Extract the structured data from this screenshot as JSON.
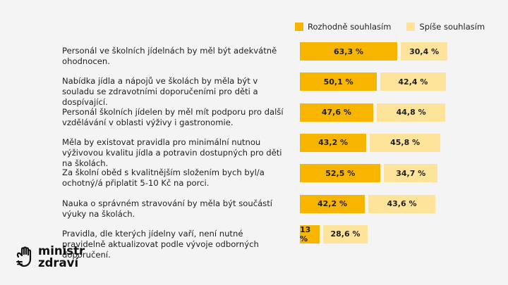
{
  "legend": {
    "series1": "Rozhodně souhlasím",
    "series2": "Spíše souhlasím"
  },
  "colors": {
    "series1": "#f7b500",
    "series2": "#fde49a",
    "background": "#f4f4f4"
  },
  "chart_data": {
    "type": "bar",
    "orientation": "horizontal",
    "stacked": true,
    "categories": [
      "Personál ve školních jídelnách by měl být adekvátně ohodnocen.",
      "Nabídka jídla a nápojů ve školách by měla být v souladu se zdravotními doporučeními pro děti a dospívající.",
      "Personál školních jídelen by měl mít podporu pro další vzdělávání v oblasti výživy i gastronomie.",
      "Měla by existovat pravidla pro minimální nutnou výživovou kvalitu jídla a potravin dostupných pro děti na školách.",
      "Za školní oběd s kvalitnějším složením bych byl/a ochotný/á připlatit 5-10 Kč na porci.",
      "Nauka o správném stravování by měla být součástí výuky na školách.",
      "Pravidla, dle kterých jídelny vaří, není nutné pravidelně aktualizovat podle vývoje odborných doporučení."
    ],
    "series": [
      {
        "name": "Rozhodně souhlasím",
        "values": [
          63.3,
          50.1,
          47.6,
          43.2,
          52.5,
          42.2,
          13
        ],
        "labels": [
          "63,3 %",
          "50,1 %",
          "47,6 %",
          "43,2 %",
          "52,5 %",
          "42,2 %",
          "13 %"
        ]
      },
      {
        "name": "Spíše souhlasím",
        "values": [
          30.4,
          42.4,
          44.8,
          45.8,
          34.7,
          43.6,
          28.6
        ],
        "labels": [
          "30,4 %",
          "42,4 %",
          "44,8 %",
          "45,8 %",
          "34,7 %",
          "43,6 %",
          "28,6 %"
        ]
      }
    ],
    "xlim": [
      0,
      100
    ],
    "unit": "%"
  },
  "logo": {
    "line1": "ministr",
    "line2": "zdraví"
  }
}
